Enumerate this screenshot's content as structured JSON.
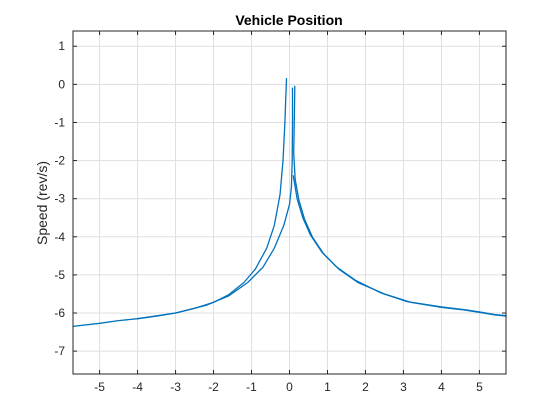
{
  "chart_data": {
    "type": "line",
    "title": "Vehicle Position",
    "xlabel": "",
    "ylabel": "Speed (rev/s)",
    "xlim": [
      -5.7,
      5.7
    ],
    "ylim": [
      -7.6,
      1.4
    ],
    "xticks": [
      -5,
      -4,
      -3,
      -2,
      -1,
      0,
      1,
      2,
      3,
      4,
      5
    ],
    "yticks": [
      1,
      0,
      -1,
      -2,
      -3,
      -4,
      -5,
      -6,
      -7
    ],
    "xtick_labels": [
      "-5",
      "-4",
      "-3",
      "-2",
      "-1",
      "0",
      "1",
      "2",
      "3",
      "4",
      "5"
    ],
    "ytick_labels": [
      "1",
      "0",
      "-1",
      "-2",
      "-3",
      "-4",
      "-5",
      "-6",
      "-7"
    ],
    "grid": true,
    "line_color": "#0072BD",
    "series": [
      {
        "values": [
          [
            -5.7,
            -6.35
          ],
          [
            -5.0,
            -6.27
          ],
          [
            -4.5,
            -6.2
          ],
          [
            -4.0,
            -6.15
          ],
          [
            -3.5,
            -6.08
          ],
          [
            -3.0,
            -6.0
          ],
          [
            -2.5,
            -5.88
          ],
          [
            -2.0,
            -5.72
          ],
          [
            -1.6,
            -5.52
          ],
          [
            -1.2,
            -5.2
          ],
          [
            -0.9,
            -4.85
          ],
          [
            -0.6,
            -4.3
          ],
          [
            -0.4,
            -3.7
          ],
          [
            -0.25,
            -2.9
          ],
          [
            -0.17,
            -2.0
          ],
          [
            -0.12,
            -1.0
          ],
          [
            -0.1,
            -0.4
          ],
          [
            -0.08,
            0.15
          ]
        ]
      },
      {
        "values": [
          [
            -4.0,
            -6.15
          ],
          [
            -3.0,
            -6.0
          ],
          [
            -2.2,
            -5.8
          ],
          [
            -1.6,
            -5.55
          ],
          [
            -1.1,
            -5.2
          ],
          [
            -0.7,
            -4.8
          ],
          [
            -0.4,
            -4.3
          ],
          [
            -0.15,
            -3.7
          ],
          [
            0.0,
            -3.15
          ],
          [
            0.05,
            -2.7
          ],
          [
            0.07,
            -2.0
          ],
          [
            0.08,
            -1.0
          ],
          [
            0.08,
            -0.1
          ]
        ]
      },
      {
        "values": [
          [
            0.14,
            -0.05
          ],
          [
            0.13,
            -0.8
          ],
          [
            0.11,
            -1.8
          ],
          [
            0.15,
            -2.5
          ],
          [
            0.25,
            -3.05
          ],
          [
            0.4,
            -3.55
          ],
          [
            0.6,
            -4.0
          ],
          [
            0.9,
            -4.45
          ],
          [
            1.3,
            -4.85
          ],
          [
            1.8,
            -5.2
          ],
          [
            2.5,
            -5.5
          ],
          [
            3.2,
            -5.72
          ],
          [
            4.0,
            -5.85
          ],
          [
            4.6,
            -5.92
          ],
          [
            5.0,
            -5.98
          ],
          [
            5.4,
            -6.05
          ],
          [
            5.7,
            -6.08
          ]
        ]
      },
      {
        "values": [
          [
            0.1,
            -2.4
          ],
          [
            0.2,
            -3.0
          ],
          [
            0.35,
            -3.5
          ],
          [
            0.55,
            -3.95
          ],
          [
            0.85,
            -4.4
          ],
          [
            1.25,
            -4.8
          ],
          [
            1.75,
            -5.15
          ],
          [
            2.4,
            -5.47
          ],
          [
            3.1,
            -5.7
          ],
          [
            4.0,
            -5.84
          ],
          [
            4.6,
            -5.91
          ],
          [
            5.0,
            -5.97
          ],
          [
            5.4,
            -6.04
          ],
          [
            5.7,
            -6.07
          ]
        ]
      }
    ]
  }
}
